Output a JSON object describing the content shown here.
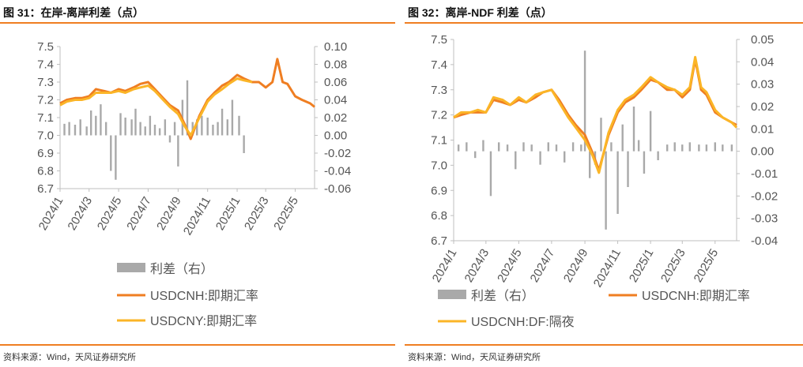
{
  "source_text": "资料来源：Wind，天风证券研究所",
  "colors": {
    "orange": "#ef7e22",
    "yellow": "#fbb527",
    "gray": "#a9a9a9",
    "rule": "#ef7e22",
    "axis": "#bfbfbf"
  },
  "chart_data": [
    {
      "type": "line",
      "title": "图 31：在岸-离岸利差（点）",
      "x_tick_labels": [
        "2024/1",
        "2024/3",
        "2024/5",
        "2024/7",
        "2024/9",
        "2024/11",
        "2025/1",
        "2025/3",
        "2025/5"
      ],
      "x_range": [
        "2024-01-01",
        "2025-06-10"
      ],
      "y_left": {
        "range": [
          6.7,
          7.5
        ],
        "ticks": [
          "6.7",
          "6.8",
          "6.9",
          "7.0",
          "7.1",
          "7.2",
          "7.3",
          "7.4",
          "7.5"
        ]
      },
      "y_right": {
        "range": [
          -0.06,
          0.1
        ],
        "ticks": [
          "-0.06",
          "-0.04",
          "-0.02",
          "0.00",
          "0.02",
          "0.04",
          "0.06",
          "0.08",
          "0.10"
        ]
      },
      "series": [
        {
          "name": "利差（右）",
          "kind": "bar",
          "axis": "right",
          "color": "#a9a9a9",
          "x": [
            "2024-01-10",
            "2024-01-20",
            "2024-02-01",
            "2024-02-12",
            "2024-02-25",
            "2024-03-05",
            "2024-03-15",
            "2024-03-25",
            "2024-04-05",
            "2024-04-15",
            "2024-04-25",
            "2024-05-05",
            "2024-05-15",
            "2024-05-28",
            "2024-06-05",
            "2024-06-15",
            "2024-06-25",
            "2024-07-05",
            "2024-07-15",
            "2024-07-25",
            "2024-08-05",
            "2024-08-15",
            "2024-08-25",
            "2024-09-01",
            "2024-09-10",
            "2024-09-20",
            "2024-10-01",
            "2024-10-10",
            "2024-10-20",
            "2024-11-01",
            "2024-11-12",
            "2024-11-22",
            "2024-12-01",
            "2024-12-12",
            "2024-12-22",
            "2025-01-05",
            "2025-01-15"
          ],
          "values": [
            0.013,
            0.015,
            0.012,
            0.018,
            0.01,
            0.028,
            0.022,
            0.035,
            0.015,
            -0.04,
            -0.05,
            0.025,
            0.02,
            0.018,
            0.03,
            0.015,
            0.01,
            0.022,
            0.012,
            0.008,
            0.018,
            -0.008,
            0.015,
            -0.035,
            0.04,
            0.062,
            0.015,
            0.018,
            0.022,
            0.02,
            0.012,
            0.015,
            0.03,
            0.018,
            0.04,
            0.022,
            -0.02
          ]
        },
        {
          "name": "USDCNH:即期汇率",
          "kind": "line",
          "axis": "left",
          "color": "#ef7e22",
          "x": [
            "2024-01-01",
            "2024-01-15",
            "2024-02-01",
            "2024-02-15",
            "2024-03-01",
            "2024-03-15",
            "2024-04-01",
            "2024-04-15",
            "2024-05-01",
            "2024-05-15",
            "2024-06-01",
            "2024-06-15",
            "2024-07-01",
            "2024-07-15",
            "2024-08-01",
            "2024-08-15",
            "2024-09-01",
            "2024-09-15",
            "2024-09-27",
            "2024-10-15",
            "2024-11-01",
            "2024-11-15",
            "2024-12-01",
            "2024-12-15",
            "2025-01-01",
            "2025-01-15",
            "2025-02-01",
            "2025-02-15",
            "2025-03-01",
            "2025-03-15",
            "2025-03-25",
            "2025-04-05",
            "2025-04-15",
            "2025-05-01",
            "2025-05-15",
            "2025-06-01",
            "2025-06-10"
          ],
          "values": [
            7.18,
            7.2,
            7.21,
            7.21,
            7.22,
            7.26,
            7.25,
            7.24,
            7.26,
            7.25,
            7.27,
            7.29,
            7.3,
            7.26,
            7.21,
            7.17,
            7.14,
            7.06,
            6.98,
            7.11,
            7.2,
            7.24,
            7.28,
            7.3,
            7.34,
            7.32,
            7.3,
            7.3,
            7.27,
            7.3,
            7.43,
            7.3,
            7.29,
            7.22,
            7.2,
            7.18,
            7.16
          ]
        },
        {
          "name": "USDCNY:即期汇率",
          "kind": "line",
          "axis": "left",
          "color": "#fbb527",
          "x": [
            "2024-01-01",
            "2024-01-15",
            "2024-02-01",
            "2024-02-15",
            "2024-03-01",
            "2024-03-15",
            "2024-04-01",
            "2024-04-15",
            "2024-05-01",
            "2024-05-15",
            "2024-06-01",
            "2024-06-15",
            "2024-07-01",
            "2024-07-15",
            "2024-08-01",
            "2024-08-15",
            "2024-09-01",
            "2024-09-15",
            "2024-09-27",
            "2024-10-15",
            "2024-11-01",
            "2024-11-15",
            "2024-12-01",
            "2024-12-15",
            "2025-01-01",
            "2025-01-15",
            "2025-02-01"
          ],
          "values": [
            7.17,
            7.19,
            7.2,
            7.2,
            7.21,
            7.24,
            7.24,
            7.24,
            7.25,
            7.24,
            7.26,
            7.27,
            7.28,
            7.25,
            7.2,
            7.16,
            7.12,
            7.05,
            7.0,
            7.1,
            7.19,
            7.23,
            7.26,
            7.29,
            7.32,
            7.31,
            7.3
          ]
        }
      ],
      "legend": [
        "利差（右）",
        "USDCNH:即期汇率",
        "USDCNY:即期汇率"
      ]
    },
    {
      "type": "line",
      "title": "图 32：离岸-NDF 利差（点）",
      "x_tick_labels": [
        "2024/1",
        "2024/3",
        "2024/5",
        "2024/7",
        "2024/9",
        "2024/11",
        "2025/1",
        "2025/3",
        "2025/5"
      ],
      "x_range": [
        "2024-01-01",
        "2025-06-10"
      ],
      "y_left": {
        "range": [
          6.7,
          7.5
        ],
        "ticks": [
          "6.7",
          "6.8",
          "6.9",
          "7.0",
          "7.1",
          "7.2",
          "7.3",
          "7.4",
          "7.5"
        ]
      },
      "y_right": {
        "range": [
          -0.04,
          0.05
        ],
        "ticks": [
          "-0.04",
          "-0.03",
          "-0.02",
          "-0.01",
          "0.00",
          "0.01",
          "0.02",
          "0.03",
          "0.04",
          "0.05"
        ]
      },
      "series": [
        {
          "name": "利差（右）",
          "kind": "bar",
          "axis": "right",
          "color": "#a9a9a9",
          "x": [
            "2024-01-10",
            "2024-01-25",
            "2024-02-10",
            "2024-02-25",
            "2024-03-10",
            "2024-03-25",
            "2024-04-10",
            "2024-04-25",
            "2024-05-10",
            "2024-05-25",
            "2024-06-10",
            "2024-06-25",
            "2024-07-10",
            "2024-07-25",
            "2024-08-10",
            "2024-08-25",
            "2024-09-01",
            "2024-09-10",
            "2024-09-20",
            "2024-10-01",
            "2024-10-10",
            "2024-10-20",
            "2024-11-01",
            "2024-11-10",
            "2024-11-20",
            "2024-12-01",
            "2024-12-10",
            "2024-12-20",
            "2025-01-01",
            "2025-01-15",
            "2025-02-01",
            "2025-02-15",
            "2025-03-01",
            "2025-03-15",
            "2025-04-01",
            "2025-04-15",
            "2025-05-01",
            "2025-05-15",
            "2025-06-01"
          ],
          "values": [
            0.003,
            0.004,
            -0.003,
            0.005,
            -0.02,
            0.004,
            0.003,
            -0.008,
            0.004,
            0.003,
            -0.006,
            0.004,
            0.003,
            -0.005,
            0.004,
            0.003,
            0.045,
            -0.012,
            -0.006,
            0.015,
            -0.035,
            0.004,
            -0.028,
            0.012,
            -0.016,
            0.02,
            0.005,
            -0.01,
            0.018,
            -0.004,
            0.003,
            0.004,
            0.003,
            0.004,
            0.003,
            0.003,
            0.004,
            0.003,
            0.003
          ]
        },
        {
          "name": "USDCNH:即期汇率",
          "kind": "line",
          "axis": "left",
          "color": "#ef7e22",
          "x": [
            "2024-01-01",
            "2024-01-15",
            "2024-02-01",
            "2024-02-15",
            "2024-03-01",
            "2024-03-15",
            "2024-04-01",
            "2024-04-15",
            "2024-05-01",
            "2024-05-15",
            "2024-06-01",
            "2024-06-15",
            "2024-07-01",
            "2024-07-15",
            "2024-08-01",
            "2024-08-15",
            "2024-09-01",
            "2024-09-15",
            "2024-09-27",
            "2024-10-15",
            "2024-11-01",
            "2024-11-15",
            "2024-12-01",
            "2024-12-15",
            "2025-01-01",
            "2025-01-15",
            "2025-02-01",
            "2025-02-15",
            "2025-03-01",
            "2025-03-15",
            "2025-03-25",
            "2025-04-05",
            "2025-04-15",
            "2025-05-01",
            "2025-05-15",
            "2025-06-01",
            "2025-06-10"
          ],
          "values": [
            7.19,
            7.2,
            7.21,
            7.21,
            7.21,
            7.26,
            7.25,
            7.24,
            7.26,
            7.25,
            7.27,
            7.29,
            7.3,
            7.26,
            7.2,
            7.16,
            7.12,
            7.05,
            6.98,
            7.12,
            7.21,
            7.25,
            7.27,
            7.3,
            7.34,
            7.33,
            7.3,
            7.3,
            7.27,
            7.3,
            7.42,
            7.3,
            7.28,
            7.21,
            7.19,
            7.17,
            7.16
          ]
        },
        {
          "name": "USDCNH:DF:隔夜",
          "kind": "line",
          "axis": "left",
          "color": "#fbb527",
          "x": [
            "2024-01-01",
            "2024-01-15",
            "2024-02-01",
            "2024-02-15",
            "2024-03-01",
            "2024-03-15",
            "2024-04-01",
            "2024-04-15",
            "2024-05-01",
            "2024-05-15",
            "2024-06-01",
            "2024-06-15",
            "2024-07-01",
            "2024-07-15",
            "2024-08-01",
            "2024-08-15",
            "2024-09-01",
            "2024-09-15",
            "2024-09-27",
            "2024-10-15",
            "2024-11-01",
            "2024-11-15",
            "2024-12-01",
            "2024-12-15",
            "2025-01-01",
            "2025-01-15",
            "2025-02-01",
            "2025-02-15",
            "2025-03-01",
            "2025-03-15",
            "2025-03-25",
            "2025-04-05",
            "2025-04-15",
            "2025-05-01",
            "2025-05-15",
            "2025-06-01",
            "2025-06-10"
          ],
          "values": [
            7.19,
            7.21,
            7.21,
            7.22,
            7.21,
            7.27,
            7.26,
            7.24,
            7.27,
            7.25,
            7.28,
            7.29,
            7.3,
            7.25,
            7.19,
            7.15,
            7.1,
            7.04,
            6.97,
            7.13,
            7.22,
            7.26,
            7.28,
            7.31,
            7.35,
            7.33,
            7.31,
            7.3,
            7.28,
            7.31,
            7.43,
            7.31,
            7.29,
            7.22,
            7.19,
            7.17,
            7.15
          ]
        }
      ],
      "legend": [
        "利差（右）",
        "USDCNH:即期汇率",
        "USDCNH:DF:隔夜"
      ]
    }
  ]
}
